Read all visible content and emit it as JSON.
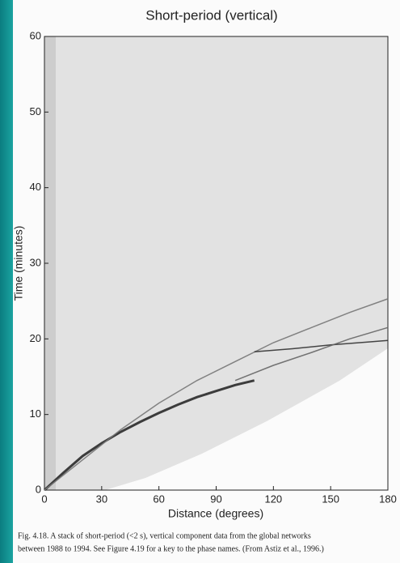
{
  "chart_data": {
    "type": "line",
    "title": "Short-period (vertical)",
    "x_label": "Distance (degrees)",
    "y_label": "Time (minutes)",
    "xlim": [
      0,
      180
    ],
    "xticks": [
      0,
      30,
      60,
      90,
      120,
      150,
      180
    ],
    "ylim": [
      0,
      60
    ],
    "yticks": [
      0,
      10,
      20,
      30,
      40,
      50,
      60
    ],
    "series": [
      {
        "color": "#2a2a2a",
        "x": [
          0,
          10,
          20,
          30,
          40,
          50,
          60,
          70,
          80,
          90,
          100,
          110
        ],
        "values": [
          0,
          2.3,
          4.5,
          6.2,
          7.7,
          9,
          10.2,
          11.3,
          12.3,
          13.1,
          13.9,
          14.5
        ]
      },
      {
        "color": "#777777",
        "x": [
          0,
          20,
          40,
          60,
          80,
          100,
          120,
          140,
          160,
          180
        ],
        "values": [
          0,
          4,
          8,
          11.5,
          14.5,
          17,
          19.5,
          21.5,
          23.5,
          25.3
        ]
      },
      {
        "color": "#333333",
        "x": [
          110,
          130,
          150,
          170,
          180
        ],
        "values": [
          18.3,
          18.7,
          19.2,
          19.6,
          19.8
        ]
      },
      {
        "color": "#666666",
        "x": [
          100,
          120,
          140,
          160,
          180
        ],
        "values": [
          14.5,
          16.5,
          18.2,
          20,
          21.5
        ]
      }
    ],
    "caption_lines": [
      "Fig. 4.18.  A stack of short-period (<2 s), vertical component data from the global networks",
      "between 1988 to 1994. See Figure 4.19 for a key to the phase names. (From Astiz et al., 1996.)"
    ]
  }
}
